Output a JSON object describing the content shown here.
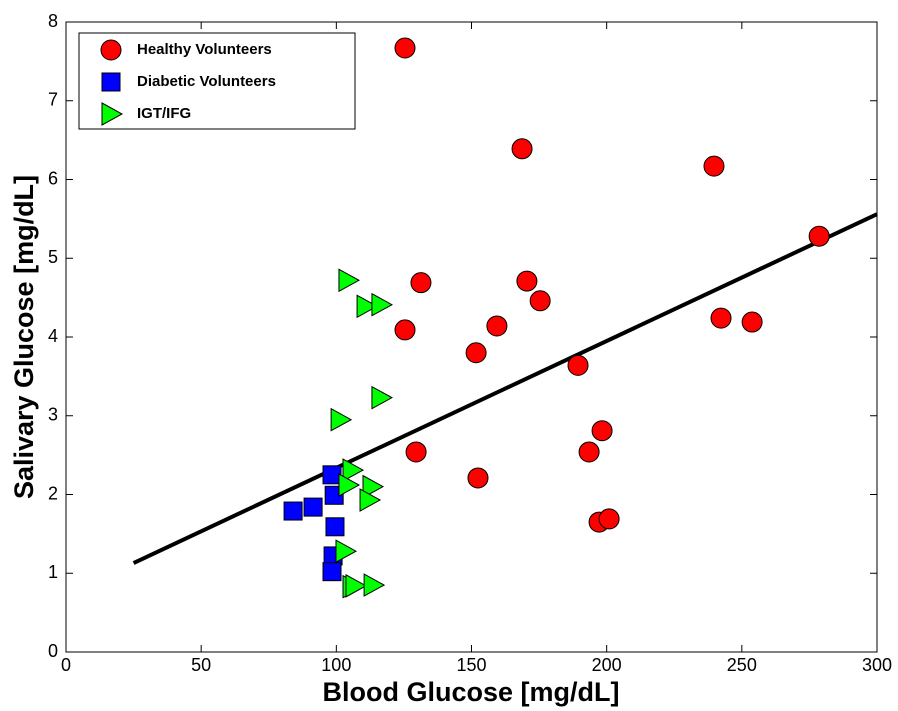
{
  "chart_data": {
    "type": "scatter",
    "x_label": "Blood Glucose [mg/dL]",
    "y_label": "Salivary Glucose [mg/dL]",
    "xlim": [
      0,
      300
    ],
    "xticks": [
      0,
      50,
      100,
      150,
      200,
      250,
      300
    ],
    "ylim": [
      0,
      8
    ],
    "yticks": [
      0,
      1,
      2,
      3,
      4,
      5,
      6,
      7,
      8
    ],
    "legend": "upper left",
    "series": [
      {
        "name": "Healthy Volunteers",
        "color": "#ff0000",
        "marker": "circle",
        "x": [
          125.4,
          168.7,
          239.7,
          278.6,
          131.3,
          170.5,
          175.4,
          159.4,
          125.4,
          151.7,
          242.3,
          253.8,
          189.4,
          129.5,
          152.4,
          193.5,
          198.3,
          197.2,
          200.9
        ],
        "y": [
          7.67,
          6.39,
          6.17,
          5.28,
          4.69,
          4.71,
          4.46,
          4.14,
          4.09,
          3.8,
          4.24,
          4.19,
          3.64,
          2.54,
          2.21,
          2.54,
          2.81,
          1.65,
          1.69
        ]
      },
      {
        "name": "Diabetic Volunteers",
        "color": "#0000ff",
        "marker": "square",
        "x": [
          84,
          91.4,
          98.4,
          99.2,
          99.5,
          98.8,
          98.4
        ],
        "y": [
          1.79,
          1.84,
          2.25,
          1.99,
          1.59,
          1.22,
          1.02
        ]
      },
      {
        "name": "IGT/IFG",
        "color": "#00ff00",
        "marker": "triangle-right",
        "x": [
          104.3,
          111,
          116.5,
          116.5,
          101.4,
          105.8,
          104.3,
          113.2,
          112.1,
          103.2,
          105.8,
          106.9,
          113.6
        ],
        "y": [
          4.72,
          4.39,
          4.41,
          3.23,
          2.95,
          2.31,
          2.12,
          2.1,
          1.93,
          1.28,
          0.83,
          0.84,
          0.85
        ]
      }
    ],
    "fit_line": {
      "color": "#000000",
      "x": [
        25,
        300
      ],
      "y": [
        1.13,
        5.56
      ]
    }
  }
}
